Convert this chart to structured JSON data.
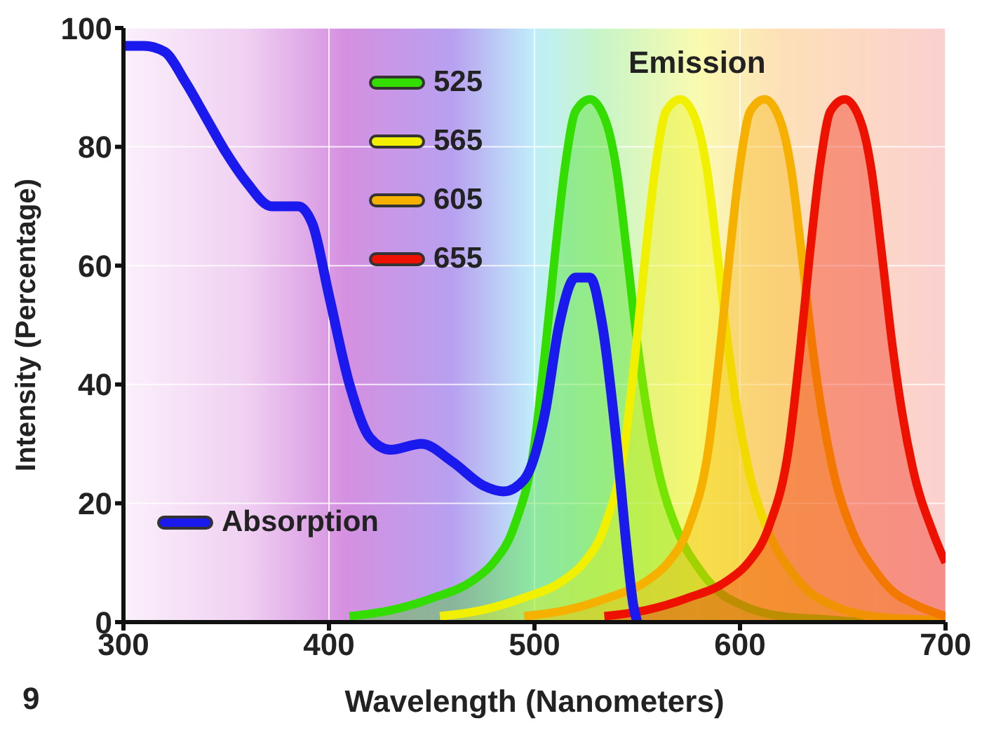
{
  "chart_data": {
    "type": "line",
    "xlabel": "Wavelength (Nanometers)",
    "ylabel": "Intensity (Percentage)",
    "xlim": [
      300,
      700
    ],
    "xticks": [
      300,
      400,
      500,
      600,
      700
    ],
    "ylim": [
      0,
      100
    ],
    "yticks": [
      0,
      20,
      40,
      60,
      80,
      100
    ],
    "grid": true,
    "legend": "top left",
    "marker": "none",
    "line_style": "solid",
    "annotations": [
      "Emission",
      "9"
    ],
    "series": [
      {
        "name": "Absorption",
        "type": "line",
        "color": "#1a1aee",
        "x": [
          300,
          310,
          320,
          330,
          340,
          350,
          360,
          372,
          385,
          392,
          400,
          410,
          420,
          430,
          445,
          460,
          475,
          485,
          495,
          505,
          512,
          520,
          527,
          533,
          540,
          545,
          548,
          550
        ],
        "values": [
          97,
          97,
          96,
          91,
          85,
          79,
          74,
          70,
          70,
          67,
          55,
          40,
          31,
          29,
          30,
          27,
          23,
          22,
          24,
          35,
          50,
          58,
          58,
          50,
          30,
          12,
          3,
          0
        ]
      },
      {
        "name": "525",
        "type": "area",
        "color": "#33dd00",
        "x": [
          410,
          430,
          450,
          470,
          480,
          490,
          500,
          505,
          510,
          515,
          520,
          527,
          535,
          540,
          545,
          550,
          555,
          560,
          570,
          580,
          590,
          600,
          620,
          640,
          660
        ],
        "values": [
          1,
          2,
          4,
          7,
          10,
          16,
          30,
          45,
          62,
          77,
          86,
          88,
          84,
          76,
          62,
          47,
          35,
          26,
          15,
          9,
          5,
          3,
          1,
          0.5,
          0
        ]
      },
      {
        "name": "565",
        "type": "area",
        "color": "#f0f000",
        "x": [
          454,
          474,
          494,
          514,
          524,
          534,
          544,
          549,
          554,
          559,
          564,
          571,
          579,
          584,
          589,
          594,
          599,
          604,
          614,
          624,
          634,
          644,
          664,
          684,
          700
        ],
        "values": [
          1,
          2,
          4,
          7,
          10,
          16,
          30,
          45,
          62,
          77,
          86,
          88,
          84,
          76,
          62,
          47,
          35,
          26,
          15,
          9,
          5,
          3,
          1,
          0.5,
          0.3
        ]
      },
      {
        "name": "605",
        "type": "area",
        "color": "#f5b000",
        "x": [
          495,
          515,
          535,
          555,
          565,
          575,
          585,
          590,
          595,
          600,
          605,
          612,
          620,
          625,
          630,
          635,
          640,
          645,
          655,
          665,
          675,
          685,
          700
        ],
        "values": [
          1,
          2,
          4,
          7,
          10,
          16,
          30,
          45,
          62,
          77,
          86,
          88,
          84,
          76,
          62,
          47,
          35,
          26,
          15,
          9,
          5,
          3,
          1
        ]
      },
      {
        "name": "655",
        "type": "area",
        "color": "#ee1100",
        "x": [
          534,
          554,
          574,
          594,
          604,
          614,
          624,
          629,
          634,
          639,
          644,
          651,
          659,
          664,
          669,
          674,
          679,
          684,
          694,
          700
        ],
        "values": [
          1,
          2,
          4,
          7,
          10,
          16,
          30,
          45,
          62,
          77,
          86,
          88,
          84,
          76,
          62,
          47,
          35,
          26,
          15,
          10
        ]
      }
    ]
  }
}
